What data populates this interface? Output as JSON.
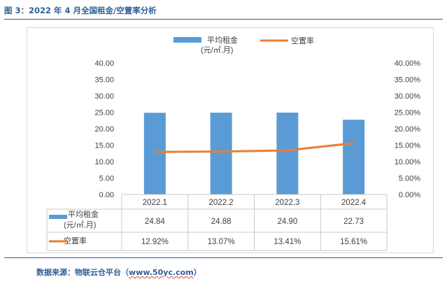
{
  "header": {
    "title": "图 3：2022 年 4 月全国租金/空置率分析"
  },
  "footer": {
    "source_prefix": "数据来源：物联云仓平台（",
    "source_url": "www.50yc.com",
    "source_suffix": "）"
  },
  "colors": {
    "bar": "#5b9bd5",
    "line": "#ed7d31",
    "title": "#2f5f97",
    "grid": "#d9d9d9"
  },
  "chart_data": {
    "type": "bar",
    "categories": [
      "2022.1",
      "2022.2",
      "2022.3",
      "2022.4"
    ],
    "series": [
      {
        "name": "平均租金(元/㎡.月)",
        "name_line1": "平均租金",
        "name_line2": "(元/㎡.月)",
        "type": "bar",
        "axis": "left",
        "values": [
          24.84,
          24.88,
          24.9,
          22.73
        ],
        "labels": [
          "24.84",
          "24.88",
          "24.90",
          "22.73"
        ]
      },
      {
        "name": "空置率",
        "type": "line",
        "axis": "right",
        "values": [
          12.92,
          13.07,
          13.41,
          15.61
        ],
        "labels": [
          "12.92%",
          "13.07%",
          "13.41%",
          "15.61%"
        ]
      }
    ],
    "y_left": {
      "min": 0,
      "max": 40,
      "step": 5,
      "ticks": [
        "0.00",
        "5.00",
        "10.00",
        "15.00",
        "20.00",
        "25.00",
        "30.00",
        "35.00",
        "40.00"
      ]
    },
    "y_right": {
      "min": 0,
      "max": 40,
      "step": 5,
      "ticks": [
        "0.00%",
        "5.00%",
        "10.00%",
        "15.00%",
        "20.00%",
        "25.00%",
        "30.00%",
        "35.00%",
        "40.00%"
      ]
    },
    "grid": false,
    "legend": "top",
    "data_table": true
  }
}
